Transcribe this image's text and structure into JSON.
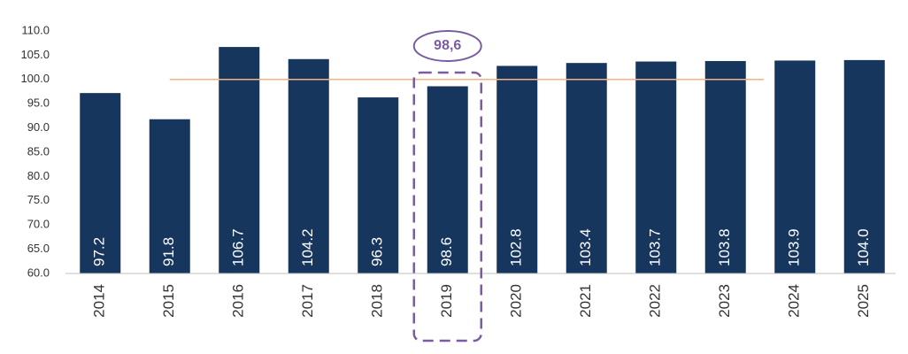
{
  "chart_data": {
    "type": "bar",
    "categories": [
      "2014",
      "2015",
      "2016",
      "2017",
      "2018",
      "2019",
      "2020",
      "2021",
      "2022",
      "2023",
      "2024",
      "2025"
    ],
    "values": [
      97.2,
      91.8,
      106.7,
      104.2,
      96.3,
      98.6,
      102.8,
      103.4,
      103.7,
      103.8,
      103.9,
      104.0
    ],
    "value_labels": [
      "97.2",
      "91.8",
      "106.7",
      "104.2",
      "96.3",
      "98.6",
      "102.8",
      "103.4",
      "103.7",
      "103.8",
      "103.9",
      "104.0"
    ],
    "color": "#17365d",
    "ylim": [
      60,
      110
    ],
    "yticks": [
      {
        "value": 60,
        "label": "60.0"
      },
      {
        "value": 65,
        "label": "65.0"
      },
      {
        "value": 70,
        "label": "70.0"
      },
      {
        "value": 75,
        "label": "75.0"
      },
      {
        "value": 80,
        "label": "80.0"
      },
      {
        "value": 85,
        "label": "85.0"
      },
      {
        "value": 90,
        "label": "90.0"
      },
      {
        "value": 95,
        "label": "95.0"
      },
      {
        "value": 100,
        "label": "100.0"
      },
      {
        "value": 105,
        "label": "105.0"
      },
      {
        "value": 110,
        "label": "110.0"
      }
    ],
    "grid": false,
    "reference_line": {
      "value": 100,
      "color": "#f4b183"
    },
    "annotation": {
      "text": "98,6",
      "category_index": 5,
      "color": "#7a5ca3"
    }
  }
}
